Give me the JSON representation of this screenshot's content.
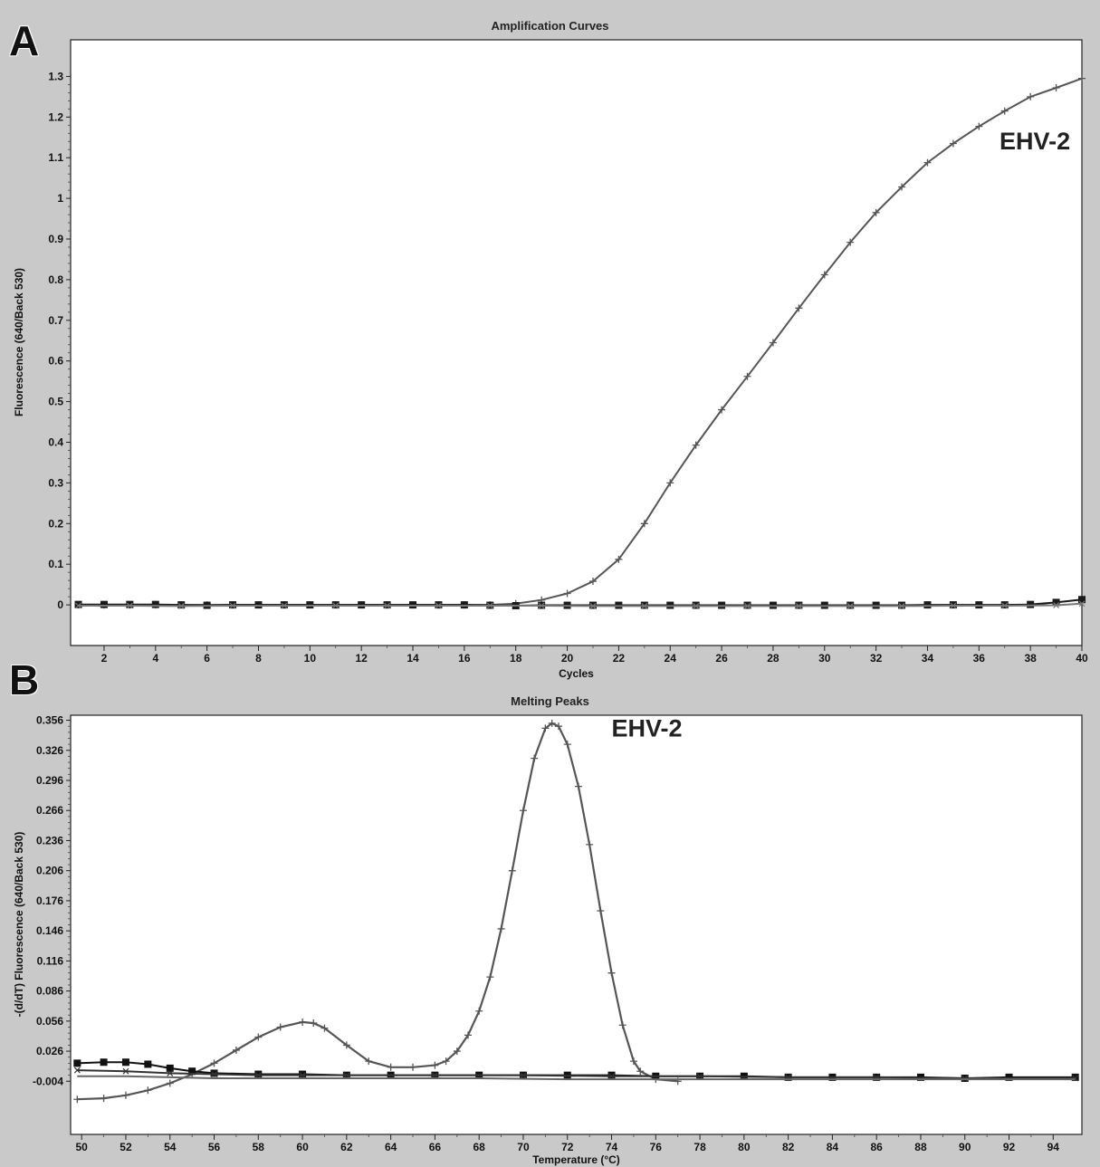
{
  "panels": [
    {
      "letter": "A"
    },
    {
      "letter": "B"
    }
  ],
  "chart_data": [
    {
      "type": "line",
      "title": "Amplification Curves",
      "xlabel": "Cycles",
      "ylabel": "Fluorescence (640/Back 530)",
      "xlim": [
        0.7,
        40
      ],
      "ylim": [
        -0.1,
        1.39
      ],
      "x_ticks": [
        2,
        4,
        6,
        8,
        10,
        12,
        14,
        16,
        18,
        20,
        22,
        24,
        26,
        28,
        30,
        32,
        34,
        36,
        38,
        40
      ],
      "y_ticks": [
        0,
        0.1,
        0.2,
        0.3,
        0.4,
        0.5,
        0.6,
        0.7,
        0.8,
        0.9,
        1,
        1.1,
        1.2,
        1.3
      ],
      "y_tick_labels": [
        "0",
        "0.1",
        "0.2",
        "0.3",
        "0.4",
        "0.5",
        "0.6",
        "0.7",
        "0.8",
        "0.9",
        "1",
        "1.1",
        "1.2",
        "1.3"
      ],
      "grid": false,
      "annotations": [
        {
          "text": "EHV-2",
          "x": 36.8,
          "y": 1.12
        }
      ],
      "series": [
        {
          "name": "EHV-2",
          "marker": "plus",
          "color": "#555555",
          "x": [
            1,
            2,
            3,
            4,
            5,
            6,
            7,
            8,
            9,
            10,
            11,
            12,
            13,
            14,
            15,
            16,
            17,
            18,
            19,
            20,
            21,
            22,
            23,
            24,
            25,
            26,
            27,
            28,
            29,
            30,
            31,
            32,
            33,
            34,
            35,
            36,
            37,
            38,
            39,
            40
          ],
          "y": [
            0,
            0,
            0,
            0,
            0,
            0,
            0,
            0,
            0,
            0,
            0,
            0,
            0,
            0,
            0,
            0,
            0,
            0.003,
            0.012,
            0.028,
            0.058,
            0.112,
            0.2,
            0.3,
            0.393,
            0.48,
            0.562,
            0.645,
            0.73,
            0.812,
            0.892,
            0.965,
            1.028,
            1.088,
            1.135,
            1.177,
            1.215,
            1.25,
            1.272,
            1.295
          ]
        },
        {
          "name": "",
          "marker": "square",
          "color": "#1a1a1a",
          "x": [
            1,
            2,
            3,
            4,
            5,
            6,
            7,
            8,
            9,
            10,
            11,
            12,
            13,
            14,
            15,
            16,
            17,
            18,
            19,
            20,
            21,
            22,
            23,
            24,
            25,
            26,
            27,
            28,
            29,
            30,
            31,
            32,
            33,
            34,
            35,
            36,
            37,
            38,
            39,
            40
          ],
          "y": [
            0.001,
            0.001,
            0.001,
            0.001,
            0.0,
            -0.001,
            0.0,
            0.0,
            0.0,
            0.0,
            0.0,
            0.0,
            0.0,
            0.0,
            0.0,
            0.0,
            -0.001,
            -0.002,
            -0.001,
            -0.001,
            -0.001,
            -0.001,
            -0.001,
            -0.001,
            -0.001,
            -0.001,
            -0.001,
            -0.001,
            -0.001,
            -0.001,
            -0.001,
            -0.001,
            -0.001,
            0.0,
            0.0,
            0.0,
            0.0,
            0.001,
            0.006,
            0.013
          ]
        },
        {
          "name": "",
          "marker": "x",
          "color": "#777777",
          "x": [
            1,
            3,
            5,
            7,
            9,
            11,
            13,
            15,
            17,
            19,
            21,
            23,
            25,
            27,
            29,
            31,
            33,
            35,
            37,
            39,
            40
          ],
          "y": [
            -0.002,
            -0.002,
            -0.003,
            -0.002,
            -0.002,
            -0.002,
            -0.002,
            -0.002,
            -0.002,
            -0.002,
            -0.003,
            -0.003,
            -0.003,
            -0.003,
            -0.003,
            -0.003,
            -0.003,
            -0.002,
            -0.002,
            -0.001,
            0.003
          ]
        }
      ]
    },
    {
      "type": "line",
      "title": "Melting Peaks",
      "xlabel": "Temperature (°C)",
      "ylabel": "-(d/dT) Fluorescence (640/Back 530)",
      "xlim": [
        49.5,
        95.3
      ],
      "ylim": [
        -0.057,
        0.361
      ],
      "x_ticks": [
        50,
        52,
        54,
        56,
        58,
        60,
        62,
        64,
        66,
        68,
        70,
        72,
        74,
        76,
        78,
        80,
        82,
        84,
        86,
        88,
        90,
        92,
        94
      ],
      "y_ticks": [
        -0.004,
        0.026,
        0.056,
        0.086,
        0.116,
        0.146,
        0.176,
        0.206,
        0.236,
        0.266,
        0.296,
        0.326,
        0.356
      ],
      "y_tick_labels": [
        "-0.004",
        "0.026",
        "0.056",
        "0.086",
        "0.116",
        "0.146",
        "0.176",
        "0.206",
        "0.236",
        "0.266",
        "0.296",
        "0.326",
        "0.356"
      ],
      "grid": false,
      "annotations": [
        {
          "text": "EHV-2",
          "x": 74.0,
          "y": 0.34
        }
      ],
      "series": [
        {
          "name": "EHV-2",
          "marker": "plus",
          "color": "#555555",
          "x": [
            49.8,
            51,
            52,
            53,
            54,
            55,
            56,
            57,
            58,
            59,
            60,
            60.5,
            61,
            62,
            63,
            64,
            65,
            66,
            66.5,
            67,
            67.5,
            68,
            68.5,
            69,
            69.5,
            70,
            70.5,
            71,
            71.3,
            71.6,
            72,
            72.5,
            73,
            73.5,
            74,
            74.5,
            75,
            75.3,
            76,
            77
          ],
          "y": [
            -0.022,
            -0.021,
            -0.018,
            -0.013,
            -0.006,
            0.003,
            0.014,
            0.027,
            0.04,
            0.05,
            0.055,
            0.054,
            0.049,
            0.032,
            0.016,
            0.01,
            0.01,
            0.012,
            0.016,
            0.026,
            0.042,
            0.066,
            0.1,
            0.148,
            0.206,
            0.266,
            0.318,
            0.348,
            0.353,
            0.35,
            0.332,
            0.29,
            0.232,
            0.166,
            0.104,
            0.052,
            0.016,
            0.006,
            -0.002,
            -0.004
          ]
        },
        {
          "name": "",
          "marker": "square",
          "color": "#111111",
          "x": [
            49.8,
            51,
            52,
            53,
            54,
            55,
            56,
            58,
            60,
            62,
            64,
            66,
            68,
            70,
            72,
            74,
            76,
            78,
            80,
            82,
            84,
            86,
            88,
            90,
            92,
            95
          ],
          "y": [
            0.014,
            0.015,
            0.015,
            0.013,
            0.009,
            0.006,
            0.004,
            0.003,
            0.003,
            0.002,
            0.002,
            0.002,
            0.002,
            0.002,
            0.002,
            0.002,
            0.001,
            0.001,
            0.001,
            0.0,
            0.0,
            0.0,
            0.0,
            -0.001,
            0.0,
            0.0
          ]
        },
        {
          "name": "",
          "marker": "x",
          "color": "#333333",
          "x": [
            49.8,
            52,
            54,
            56,
            58,
            60,
            62,
            66,
            70,
            74,
            78,
            82,
            86,
            90,
            95
          ],
          "y": [
            0.007,
            0.006,
            0.004,
            0.003,
            0.002,
            0.002,
            0.002,
            0.002,
            0.002,
            0.001,
            0.001,
            0.0,
            0.0,
            -0.001,
            -0.001
          ]
        },
        {
          "name": "",
          "marker": "none",
          "color": "#666666",
          "x": [
            49.8,
            52,
            54,
            56,
            58,
            60,
            64,
            68,
            72,
            76,
            80,
            84,
            88,
            92,
            95
          ],
          "y": [
            0.001,
            0.001,
            0.0,
            -0.001,
            -0.001,
            -0.001,
            -0.001,
            -0.001,
            -0.002,
            -0.002,
            -0.002,
            -0.002,
            -0.002,
            -0.002,
            -0.002
          ]
        }
      ]
    }
  ]
}
